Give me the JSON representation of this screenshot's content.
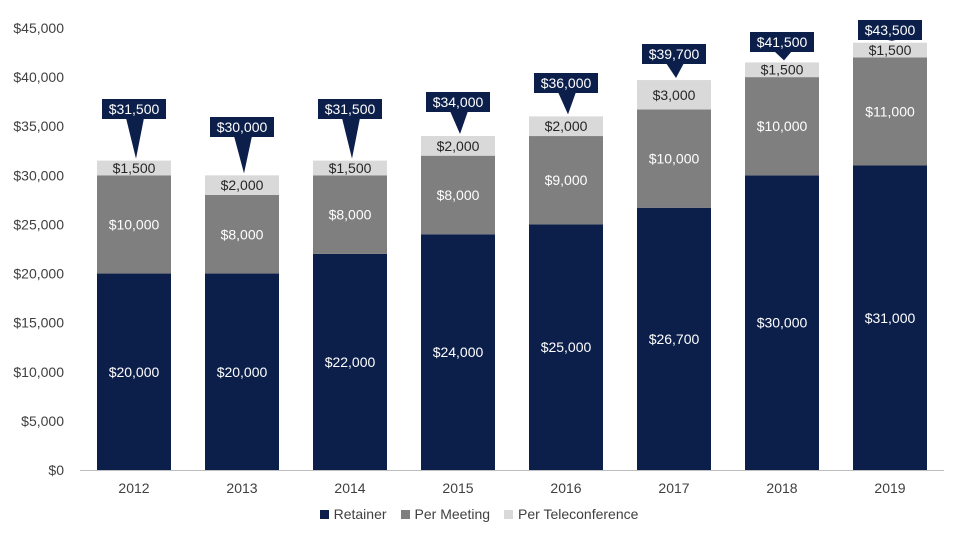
{
  "chart_data": {
    "type": "bar",
    "stacked": true,
    "categories": [
      "2012",
      "2013",
      "2014",
      "2015",
      "2016",
      "2017",
      "2018",
      "2019"
    ],
    "series": [
      {
        "name": "Retainer",
        "color": "#0c1f4b",
        "label_color": "#ffffff",
        "values": [
          20000,
          20000,
          22000,
          24000,
          25000,
          26700,
          30000,
          31000
        ],
        "labels": [
          "$20,000",
          "$20,000",
          "$22,000",
          "$24,000",
          "$25,000",
          "$26,700",
          "$30,000",
          "$31,000"
        ]
      },
      {
        "name": "Per Meeting",
        "color": "#7f7f7f",
        "label_color": "#ffffff",
        "values": [
          10000,
          8000,
          8000,
          8000,
          9000,
          10000,
          10000,
          11000
        ],
        "labels": [
          "$10,000",
          "$8,000",
          "$8,000",
          "$8,000",
          "$9,000",
          "$10,000",
          "$10,000",
          "$11,000"
        ]
      },
      {
        "name": "Per Teleconference",
        "color": "#d9d9d9",
        "label_color": "#262626",
        "values": [
          1500,
          2000,
          1500,
          2000,
          2000,
          3000,
          1500,
          1500
        ],
        "labels": [
          "$1,500",
          "$2,000",
          "$1,500",
          "$2,000",
          "$2,000",
          "$3,000",
          "$1,500",
          "$1,500"
        ]
      }
    ],
    "totals": [
      "$31,500",
      "$30,000",
      "$31,500",
      "$34,000",
      "$36,000",
      "$39,700",
      "$41,500",
      "$43,500"
    ],
    "total_values": [
      31500,
      30000,
      31500,
      34000,
      36000,
      39700,
      41500,
      43500
    ],
    "callout_color": "#0c1f4b",
    "ylim": [
      0,
      45000
    ],
    "yticks": [
      "$0",
      "$5,000",
      "$10,000",
      "$15,000",
      "$20,000",
      "$25,000",
      "$30,000",
      "$35,000",
      "$40,000",
      "$45,000"
    ],
    "ytick_values": [
      0,
      5000,
      10000,
      15000,
      20000,
      25000,
      30000,
      35000,
      40000,
      45000
    ],
    "grid": false,
    "legend_position": "bottom",
    "title": "",
    "xlabel": "",
    "ylabel": ""
  }
}
